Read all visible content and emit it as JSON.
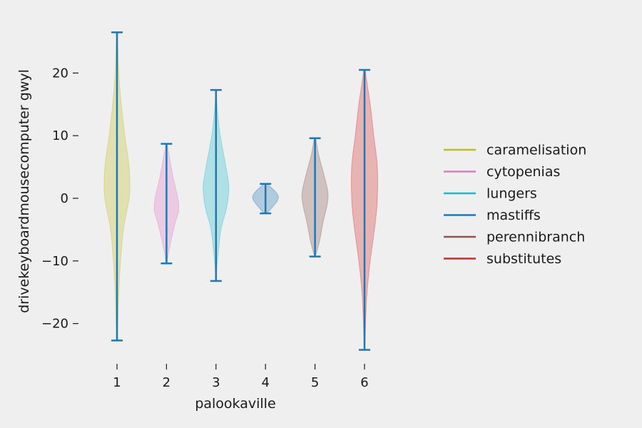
{
  "chart_data": {
    "type": "violin",
    "xlabel": "palookaville",
    "ylabel": "drivekeyboardmousecomputer gwyl",
    "x_ticks": [
      "1",
      "2",
      "3",
      "4",
      "5",
      "6"
    ],
    "y_ticks": [
      -20,
      -10,
      0,
      10,
      20
    ],
    "ylim": [
      -25,
      27
    ],
    "grid": false,
    "legend_placement": "right",
    "extrema_color": "#1f77b4",
    "series": [
      {
        "name": "caramelisation",
        "x": 1,
        "min": -22.7,
        "max": 26.5,
        "color": "#bcbd22",
        "profile": [
          [
            -22.7,
            0.3
          ],
          [
            -20,
            1.2
          ],
          [
            -15,
            2.5
          ],
          [
            -10,
            5
          ],
          [
            -5,
            9
          ],
          [
            0,
            17
          ],
          [
            3,
            18
          ],
          [
            6,
            16
          ],
          [
            10,
            11
          ],
          [
            15,
            6
          ],
          [
            20,
            2.5
          ],
          [
            26.5,
            0.5
          ]
        ]
      },
      {
        "name": "cytopenias",
        "x": 2,
        "min": -10.4,
        "max": 8.7,
        "color": "#e377c2",
        "profile": [
          [
            -10.4,
            0.5
          ],
          [
            -8,
            4
          ],
          [
            -4,
            12
          ],
          [
            -2,
            17
          ],
          [
            0,
            16
          ],
          [
            3,
            10
          ],
          [
            6,
            5
          ],
          [
            8.7,
            1
          ]
        ]
      },
      {
        "name": "lungers",
        "x": 3,
        "min": -13.2,
        "max": 17.3,
        "color": "#17becf",
        "profile": [
          [
            -13.2,
            0.3
          ],
          [
            -10,
            2
          ],
          [
            -5,
            7
          ],
          [
            -2,
            14
          ],
          [
            0,
            17
          ],
          [
            2,
            18
          ],
          [
            5,
            14
          ],
          [
            10,
            6
          ],
          [
            14,
            2
          ],
          [
            17.3,
            0.3
          ]
        ]
      },
      {
        "name": "mastiffs",
        "x": 4,
        "min": -2.4,
        "max": 2.3,
        "color": "#1f77b4",
        "profile": [
          [
            -2.4,
            2
          ],
          [
            -1.5,
            9
          ],
          [
            -0.5,
            16
          ],
          [
            0.3,
            18
          ],
          [
            1.2,
            13
          ],
          [
            2.3,
            2
          ]
        ]
      },
      {
        "name": "perennibranch",
        "x": 5,
        "min": -9.3,
        "max": 9.6,
        "color": "#8c564b",
        "profile": [
          [
            -9.3,
            0.5
          ],
          [
            -7,
            6
          ],
          [
            -4,
            11
          ],
          [
            -1,
            17
          ],
          [
            1,
            18
          ],
          [
            4,
            12
          ],
          [
            7,
            5
          ],
          [
            9.6,
            1
          ]
        ]
      },
      {
        "name": "substitutes",
        "x": 6,
        "min": -24.2,
        "max": 20.5,
        "color": "#d62728",
        "profile": [
          [
            -24.2,
            0.3
          ],
          [
            -20,
            1.5
          ],
          [
            -15,
            3.5
          ],
          [
            -10,
            8
          ],
          [
            -4,
            15
          ],
          [
            0,
            18
          ],
          [
            5,
            18
          ],
          [
            10,
            13
          ],
          [
            15,
            8
          ],
          [
            18,
            4
          ],
          [
            20.5,
            1
          ]
        ]
      }
    ]
  }
}
